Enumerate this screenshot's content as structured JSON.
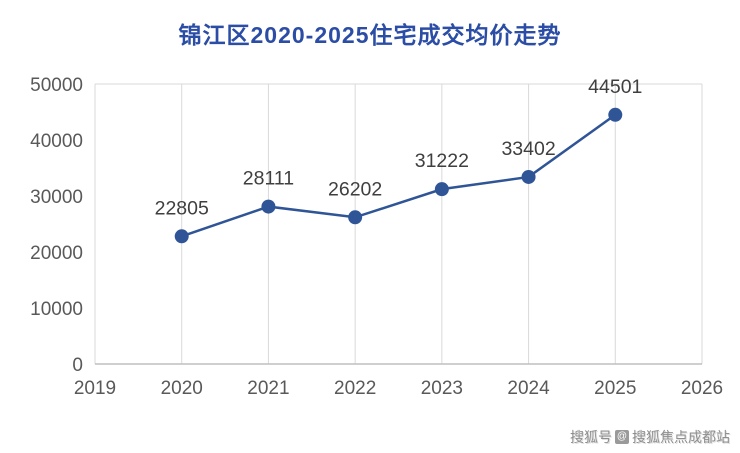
{
  "chart_data": {
    "type": "line",
    "title": "锦江区2020-2025住宅成交均价走势",
    "x": [
      2020,
      2021,
      2022,
      2023,
      2024,
      2025
    ],
    "values": [
      22805,
      28111,
      26202,
      31222,
      33402,
      44501
    ],
    "data_labels": [
      "22805",
      "28111",
      "26202",
      "31222",
      "33402",
      "44501"
    ],
    "xticks": [
      2019,
      2020,
      2021,
      2022,
      2023,
      2024,
      2025,
      2026
    ],
    "yticks": [
      0,
      10000,
      20000,
      30000,
      40000,
      50000
    ],
    "xlim": [
      2019,
      2026
    ],
    "ylim": [
      0,
      50000
    ],
    "grid": "vertical",
    "legend": "none",
    "xlabel": "",
    "ylabel": ""
  },
  "colors": {
    "title": "#2B4DA5",
    "line": "#2F5597",
    "marker": "#2F5597",
    "grid": "#D9D9D9",
    "axis": "#BFBFBF",
    "tick_text": "#595959",
    "data_label_text": "#3F3F3F"
  },
  "watermark": {
    "account_label": "搜狐号",
    "logo_glyph": "@",
    "brand_label": "搜狐焦点成都站"
  }
}
